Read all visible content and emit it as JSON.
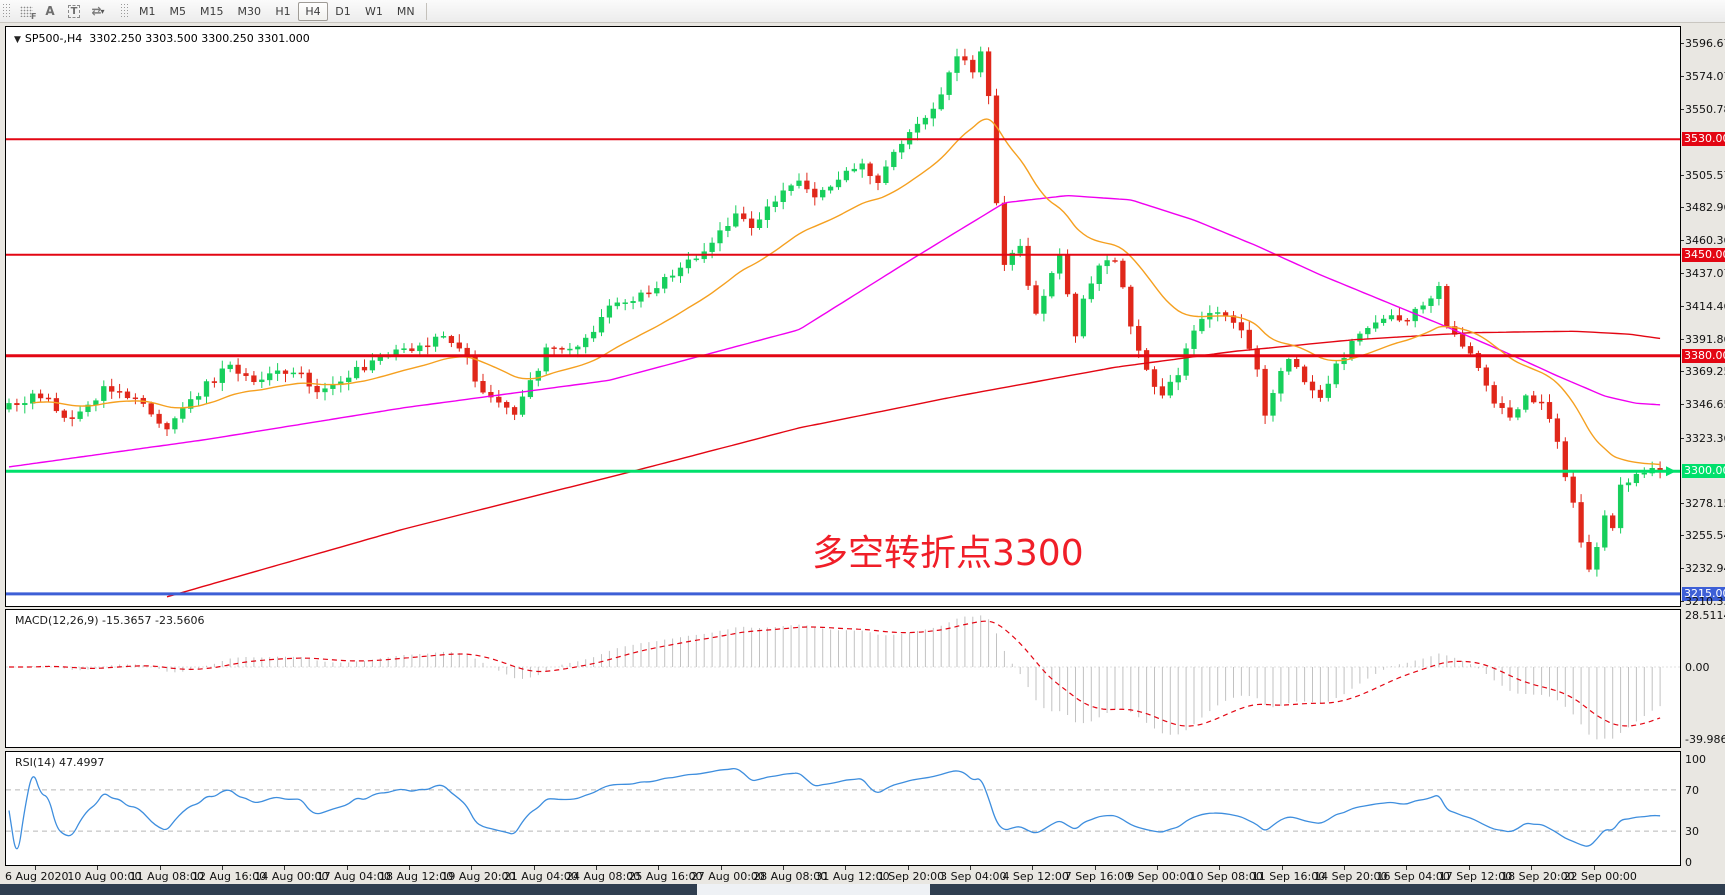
{
  "toolbar": {
    "icon_f": "F",
    "icon_a": "A",
    "icon_t": "T",
    "icon_arrows": "⇄",
    "caret": "▾",
    "timeframes": [
      "M1",
      "M5",
      "M15",
      "M30",
      "H1",
      "H4",
      "D1",
      "W1",
      "MN"
    ],
    "active_timeframe": "H4"
  },
  "chart": {
    "title": "SP500-,H4",
    "ohlc": "3302.250 3303.500 3300.250 3301.000",
    "dropdown_glyph": "▼",
    "annotation": {
      "text": "多空转折点3300",
      "color": "#f01e28"
    }
  },
  "price_axis": {
    "ticks": [
      "3596.675",
      "3574.070",
      "3550.780",
      "3505.570",
      "3482.965",
      "3460.360",
      "3437.070",
      "3414.465",
      "3391.860",
      "3369.255",
      "3346.650",
      "3323.360",
      "3278.150",
      "3255.545",
      "3232.940",
      "3210.335"
    ]
  },
  "levels": [
    {
      "label": "3530.000",
      "price": 3530.0,
      "color": "#e30613",
      "thickness": 2
    },
    {
      "label": "3450.000",
      "price": 3450.0,
      "color": "#e30613",
      "thickness": 2
    },
    {
      "label": "3380.000",
      "price": 3380.0,
      "color": "#e30613",
      "thickness": 3
    },
    {
      "label": "3300.000",
      "price": 3300.0,
      "color": "#00e06c",
      "thickness": 3
    },
    {
      "label": "3215.000",
      "price": 3215.0,
      "color": "#3d5fd6",
      "thickness": 3
    }
  ],
  "macd_panel": {
    "label": "MACD(12,26,9) -15.3657 -23.5606",
    "axis": [
      "28.5114",
      "0.00",
      "-39.9869"
    ],
    "axis_range": [
      28.5114,
      -39.9869
    ],
    "histogram_color": "#c2c2c2",
    "signal_color": "#e30613"
  },
  "rsi_panel": {
    "label": "RSI(14) 47.4997",
    "axis": [
      "100",
      "70",
      "30",
      "0"
    ],
    "guide_levels": [
      70,
      30
    ],
    "line_color": "#3e8ede"
  },
  "time_axis": [
    "6 Aug 2020",
    "10 Aug 00:00",
    "11 Aug 08:00",
    "12 Aug 16:00",
    "14 Aug 00:00",
    "17 Aug 04:00",
    "18 Aug 12:00",
    "19 Aug 20:00",
    "21 Aug 04:00",
    "24 Aug 08:00",
    "25 Aug 16:00",
    "27 Aug 00:00",
    "28 Aug 08:00",
    "31 Aug 12:00",
    "1 Sep 20:00",
    "3 Sep 04:00",
    "4 Sep 12:00",
    "7 Sep 16:00",
    "9 Sep 00:00",
    "10 Sep 08:00",
    "11 Sep 16:00",
    "14 Sep 20:00",
    "16 Sep 04:00",
    "17 Sep 12:00",
    "18 Sep 20:00",
    "22 Sep 00:00"
  ],
  "colors": {
    "candle_up": "#17cf5c",
    "candle_down": "#e0271a",
    "ma_fast": "#f5a020",
    "ma_mid": "#f000f0",
    "ma_slow": "#e30613",
    "price_marker": "#00e06c"
  },
  "chart_data": {
    "type": "candlestick",
    "symbol": "SP500-",
    "period": "H4",
    "price_top": 3596.675,
    "price_bottom": 3210.335,
    "close_anchors": [
      [
        0,
        3348
      ],
      [
        4,
        3352
      ],
      [
        8,
        3336
      ],
      [
        12,
        3357
      ],
      [
        16,
        3352
      ],
      [
        20,
        3330
      ],
      [
        22,
        3345
      ],
      [
        28,
        3374
      ],
      [
        31,
        3362
      ],
      [
        36,
        3370
      ],
      [
        39,
        3356
      ],
      [
        44,
        3370
      ],
      [
        48,
        3380
      ],
      [
        52,
        3386
      ],
      [
        55,
        3392
      ],
      [
        58,
        3378
      ],
      [
        60,
        3352
      ],
      [
        64,
        3342
      ],
      [
        67,
        3372
      ],
      [
        68,
        3388
      ],
      [
        72,
        3384
      ],
      [
        76,
        3412
      ],
      [
        80,
        3422
      ],
      [
        84,
        3435
      ],
      [
        88,
        3452
      ],
      [
        92,
        3478
      ],
      [
        94,
        3466
      ],
      [
        96,
        3482
      ],
      [
        100,
        3504
      ],
      [
        102,
        3492
      ],
      [
        104,
        3498
      ],
      [
        108,
        3512
      ],
      [
        110,
        3500
      ],
      [
        112,
        3522
      ],
      [
        116,
        3545
      ],
      [
        118,
        3562
      ],
      [
        120,
        3588
      ],
      [
        122,
        3578
      ],
      [
        123,
        3590
      ],
      [
        124,
        3562
      ],
      [
        125,
        3488
      ],
      [
        126,
        3442
      ],
      [
        128,
        3455
      ],
      [
        130,
        3408
      ],
      [
        132,
        3436
      ],
      [
        133,
        3448
      ],
      [
        134,
        3420
      ],
      [
        135,
        3395
      ],
      [
        136,
        3420
      ],
      [
        138,
        3442
      ],
      [
        140,
        3448
      ],
      [
        141,
        3430
      ],
      [
        142,
        3400
      ],
      [
        144,
        3370
      ],
      [
        146,
        3352
      ],
      [
        148,
        3368
      ],
      [
        150,
        3398
      ],
      [
        152,
        3412
      ],
      [
        154,
        3408
      ],
      [
        156,
        3396
      ],
      [
        158,
        3368
      ],
      [
        159,
        3340
      ],
      [
        160,
        3355
      ],
      [
        162,
        3378
      ],
      [
        164,
        3362
      ],
      [
        166,
        3348
      ],
      [
        168,
        3374
      ],
      [
        170,
        3388
      ],
      [
        172,
        3398
      ],
      [
        174,
        3408
      ],
      [
        176,
        3402
      ],
      [
        178,
        3412
      ],
      [
        180,
        3418
      ],
      [
        181,
        3428
      ],
      [
        182,
        3402
      ],
      [
        184,
        3388
      ],
      [
        186,
        3372
      ],
      [
        188,
        3348
      ],
      [
        190,
        3336
      ],
      [
        192,
        3352
      ],
      [
        194,
        3348
      ],
      [
        196,
        3320
      ],
      [
        197,
        3298
      ],
      [
        198,
        3278
      ],
      [
        199,
        3252
      ],
      [
        200,
        3232
      ],
      [
        201,
        3248
      ],
      [
        202,
        3272
      ],
      [
        203,
        3262
      ],
      [
        204,
        3288
      ],
      [
        206,
        3297
      ],
      [
        209,
        3301
      ]
    ],
    "ma_mid_anchors": [
      [
        0,
        3303
      ],
      [
        25,
        3322
      ],
      [
        50,
        3344
      ],
      [
        76,
        3363
      ],
      [
        100,
        3398
      ],
      [
        114,
        3446
      ],
      [
        126,
        3486
      ],
      [
        134,
        3491
      ],
      [
        142,
        3488
      ],
      [
        150,
        3474
      ],
      [
        158,
        3456
      ],
      [
        166,
        3436
      ],
      [
        174,
        3418
      ],
      [
        182,
        3400
      ],
      [
        190,
        3381
      ],
      [
        196,
        3366
      ],
      [
        202,
        3352
      ],
      [
        206,
        3347
      ],
      [
        209,
        3346
      ]
    ],
    "ma_slow_anchors": [
      [
        20,
        3213
      ],
      [
        50,
        3260
      ],
      [
        79,
        3300
      ],
      [
        100,
        3330
      ],
      [
        120,
        3352
      ],
      [
        140,
        3372
      ],
      [
        155,
        3383
      ],
      [
        170,
        3391
      ],
      [
        185,
        3396
      ],
      [
        198,
        3397
      ],
      [
        205,
        3395
      ],
      [
        209,
        3392
      ]
    ],
    "last_close": 3301.0
  }
}
